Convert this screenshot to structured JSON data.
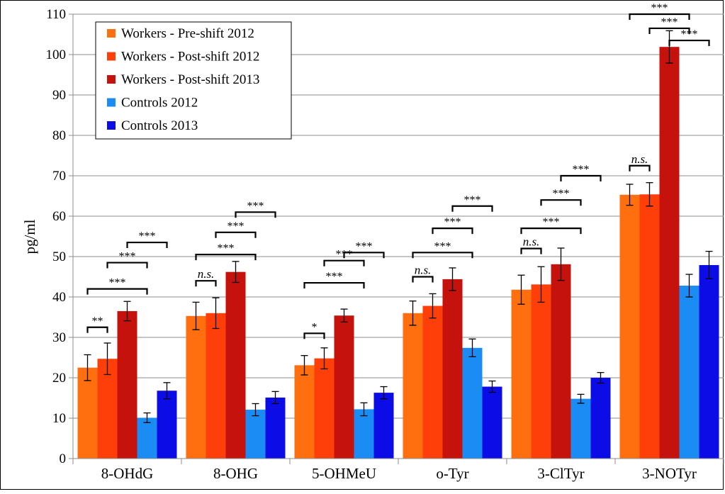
{
  "chart_data": {
    "type": "bar",
    "title": "",
    "xlabel": "",
    "ylabel": "pg/ml",
    "ylim": [
      0,
      110
    ],
    "yticks": [
      0,
      10,
      20,
      30,
      40,
      50,
      60,
      70,
      80,
      90,
      100,
      110
    ],
    "grid": true,
    "legend_position": "top-left",
    "categories": [
      "8-OHdG",
      "8-OHG",
      "5-OHMeU",
      "o-Tyr",
      "3-ClTyr",
      "3-NOTyr"
    ],
    "series": [
      {
        "name": "Workers - Pre-shift 2012",
        "color": "#FF6F0F",
        "values": [
          22.5,
          35.3,
          23.1,
          36.0,
          41.8,
          65.3
        ],
        "errors": [
          3.2,
          3.4,
          2.4,
          3.0,
          3.6,
          2.6
        ]
      },
      {
        "name": "Workers - Post-shift 2012",
        "color": "#FF3F0A",
        "values": [
          24.7,
          36.0,
          24.8,
          37.8,
          43.1,
          65.4
        ],
        "errors": [
          3.9,
          3.8,
          2.6,
          3.0,
          4.4,
          2.9
        ]
      },
      {
        "name": "Workers - Post-shift 2013",
        "color": "#C5120D",
        "values": [
          36.5,
          46.2,
          35.4,
          44.4,
          48.1,
          101.9
        ],
        "errors": [
          2.4,
          2.6,
          1.6,
          2.8,
          4.0,
          4.0
        ]
      },
      {
        "name": "Controls 2012",
        "color": "#1C8CF5",
        "values": [
          10.1,
          12.1,
          12.2,
          27.4,
          14.8,
          42.8
        ],
        "errors": [
          1.2,
          1.5,
          1.6,
          2.2,
          1.1,
          2.8
        ]
      },
      {
        "name": "Controls 2013",
        "color": "#0C0CE6",
        "values": [
          16.8,
          15.1,
          16.3,
          17.8,
          20.0,
          47.9
        ],
        "errors": [
          2.0,
          1.5,
          1.5,
          1.4,
          1.3,
          3.4
        ]
      }
    ],
    "annotations": [
      {
        "category": 0,
        "from": 0,
        "to": 1,
        "label": "**",
        "y": 32.5
      },
      {
        "category": 0,
        "from": 0,
        "to": 3,
        "label": "***",
        "y": 42
      },
      {
        "category": 0,
        "from": 1,
        "to": 3,
        "label": "***",
        "y": 48.5
      },
      {
        "category": 0,
        "from": 2,
        "to": 4,
        "label": "***",
        "y": 53.5
      },
      {
        "category": 1,
        "from": 0,
        "to": 1,
        "label": "n.s.",
        "y": 44,
        "italic": true
      },
      {
        "category": 1,
        "from": 0,
        "to": 3,
        "label": "***",
        "y": 50.5
      },
      {
        "category": 1,
        "from": 1,
        "to": 3,
        "label": "***",
        "y": 56
      },
      {
        "category": 1,
        "from": 2,
        "to": 4,
        "label": "***",
        "y": 61
      },
      {
        "category": 2,
        "from": 0,
        "to": 1,
        "label": "*",
        "y": 31
      },
      {
        "category": 2,
        "from": 0,
        "to": 3,
        "label": "***",
        "y": 43.5
      },
      {
        "category": 2,
        "from": 1,
        "to": 3,
        "label": "***",
        "y": 49
      },
      {
        "category": 2,
        "from": 2,
        "to": 4,
        "label": "***",
        "y": 51
      },
      {
        "category": 3,
        "from": 0,
        "to": 1,
        "label": "n.s.",
        "y": 45,
        "italic": true
      },
      {
        "category": 3,
        "from": 0,
        "to": 3,
        "label": "***",
        "y": 51
      },
      {
        "category": 3,
        "from": 1,
        "to": 3,
        "label": "***",
        "y": 57
      },
      {
        "category": 3,
        "from": 2,
        "to": 4,
        "label": "***",
        "y": 62.5
      },
      {
        "category": 4,
        "from": 0,
        "to": 1,
        "label": "n.s.",
        "y": 52,
        "italic": true
      },
      {
        "category": 4,
        "from": 0,
        "to": 3,
        "label": "***",
        "y": 57
      },
      {
        "category": 4,
        "from": 1,
        "to": 3,
        "label": "***",
        "y": 64
      },
      {
        "category": 4,
        "from": 2,
        "to": 4,
        "label": "***",
        "y": 70
      },
      {
        "category": 5,
        "from": 0,
        "to": 1,
        "label": "n.s.",
        "y": 72.5,
        "italic": true
      },
      {
        "category": 5,
        "from": 0,
        "to": 3,
        "label": "***",
        "y": 110
      },
      {
        "category": 5,
        "from": 1,
        "to": 3,
        "label": "***",
        "y": 106.5
      },
      {
        "category": 5,
        "from": 2,
        "to": 4,
        "label": "***",
        "y": 103.5
      }
    ]
  }
}
